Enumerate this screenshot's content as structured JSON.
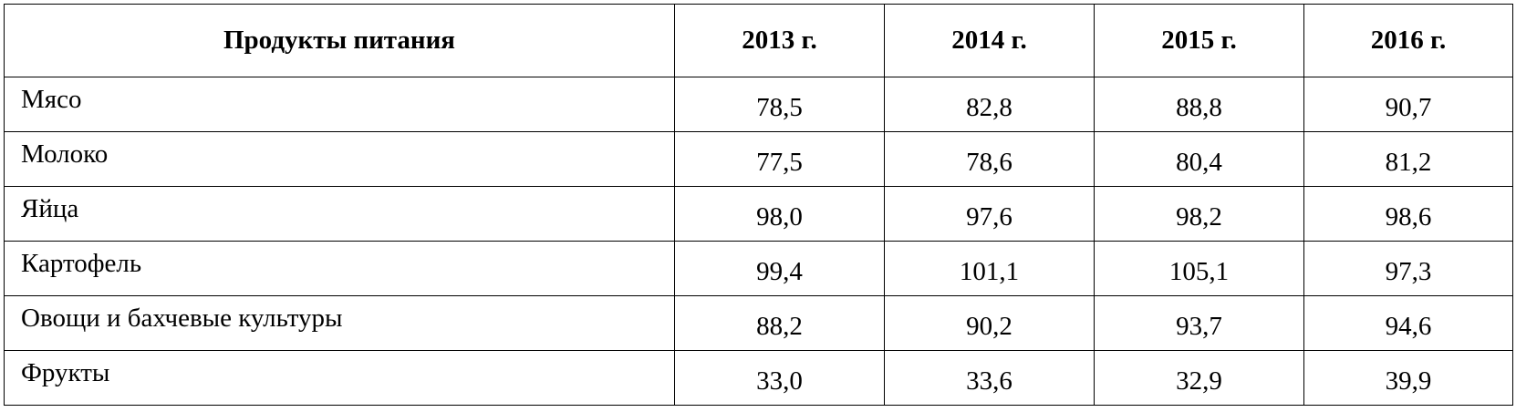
{
  "table": {
    "header": [
      "Продукты питания",
      "2013 г.",
      "2014 г.",
      "2015 г.",
      "2016 г."
    ],
    "rows": [
      [
        "Мясо",
        "78,5",
        "82,8",
        "88,8",
        "90,7"
      ],
      [
        "Молоко",
        "77,5",
        "78,6",
        "80,4",
        "81,2"
      ],
      [
        "Яйца",
        "98,0",
        "97,6",
        "98,2",
        "98,6"
      ],
      [
        "Картофель",
        "99,4",
        "101,1",
        "105,1",
        "97,3"
      ],
      [
        "Овощи и бахчевые культуры",
        "88,2",
        "90,2",
        "93,7",
        "94,6"
      ],
      [
        "Фрукты",
        "33,0",
        "33,6",
        "32,9",
        "39,9"
      ]
    ]
  }
}
